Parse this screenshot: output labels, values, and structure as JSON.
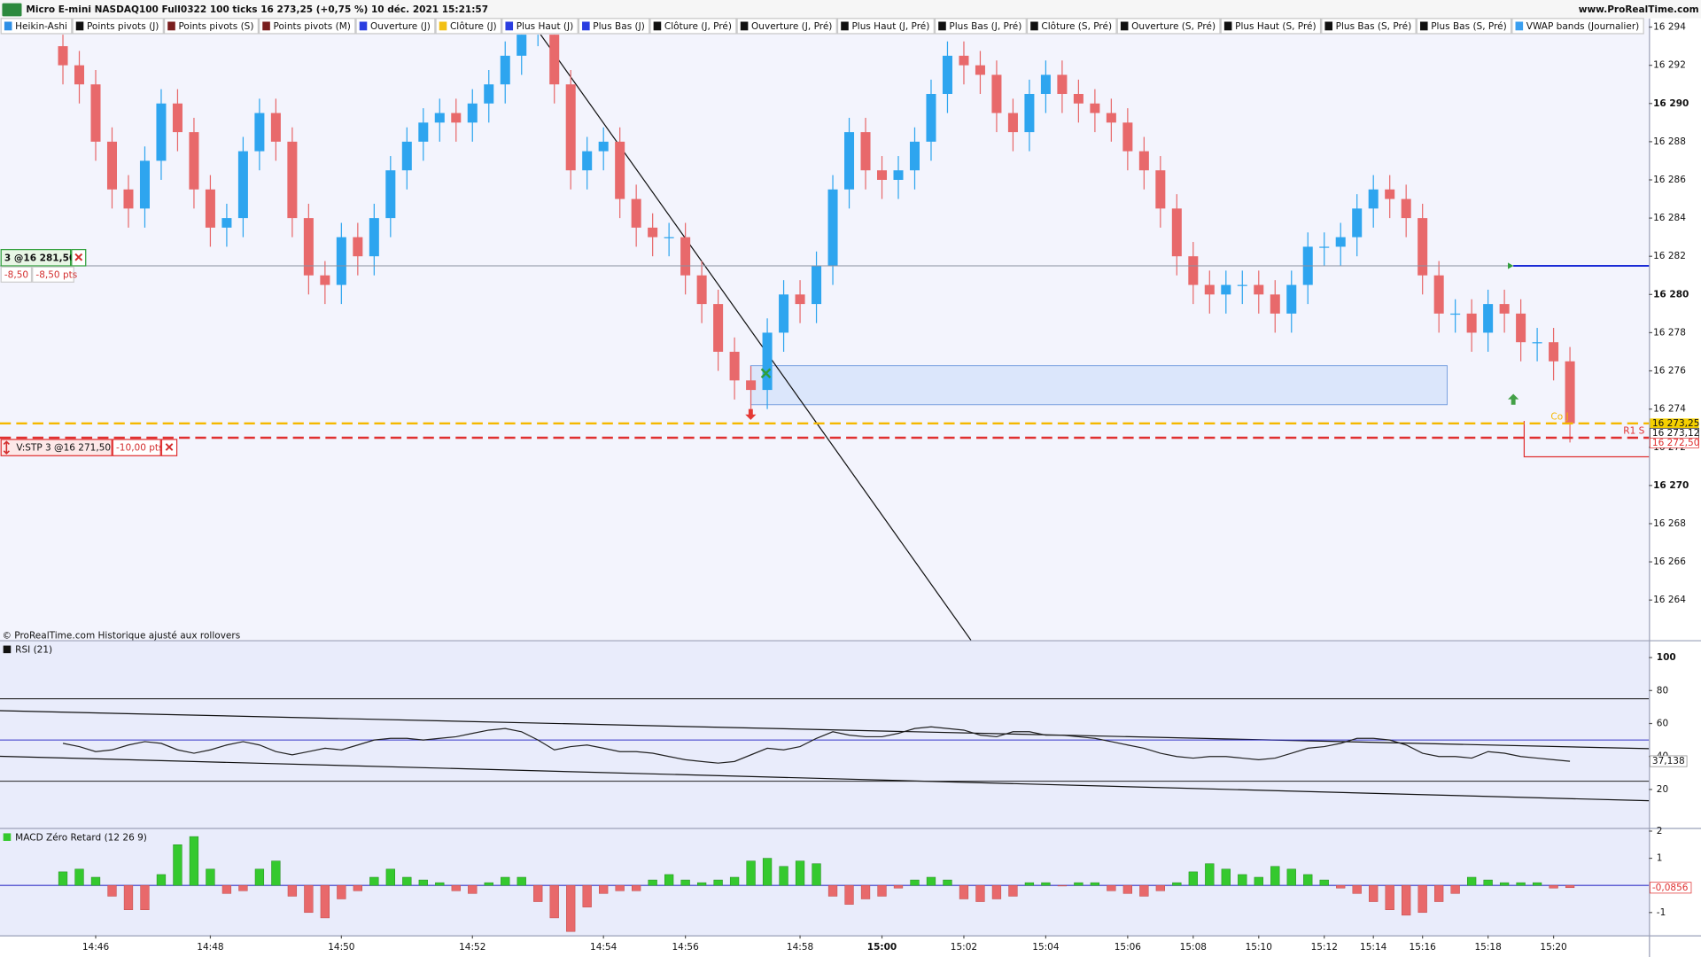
{
  "header": {
    "title": "Micro E-mini NASDAQ100 Full0322 100 ticks 16 273,25 (+0,75 %) 10 déc. 2021 15:21:57",
    "site": "www.ProRealTime.com"
  },
  "legend": [
    {
      "label": "Heikin-Ashi",
      "color": "#2e8fe6"
    },
    {
      "label": "Points pivots (J)",
      "color": "#111111"
    },
    {
      "label": "Points pivots (S)",
      "color": "#7a1f1f"
    },
    {
      "label": "Points pivots (M)",
      "color": "#7a1f1f"
    },
    {
      "label": "Ouverture (J)",
      "color": "#2b3ee0"
    },
    {
      "label": "Clôture (J)",
      "color": "#f2c014"
    },
    {
      "label": "Plus Haut (J)",
      "color": "#2b3ee0"
    },
    {
      "label": "Plus Bas (J)",
      "color": "#2b3ee0"
    },
    {
      "label": "Clôture (J, Pré)",
      "color": "#111111"
    },
    {
      "label": "Ouverture (J, Pré)",
      "color": "#111111"
    },
    {
      "label": "Plus Haut (J, Pré)",
      "color": "#111111"
    },
    {
      "label": "Plus Bas (J, Pré)",
      "color": "#111111"
    },
    {
      "label": "Clôture (S, Pré)",
      "color": "#111111"
    },
    {
      "label": "Ouverture (S, Pré)",
      "color": "#111111"
    },
    {
      "label": "Plus Haut (S, Pré)",
      "color": "#111111"
    },
    {
      "label": "Plus Bas (S, Pré)",
      "color": "#111111"
    },
    {
      "label": "Plus Bas (S, Pré)",
      "color": "#111111"
    },
    {
      "label": "VWAP bands (Journalier)",
      "color": "#3a9ff0"
    }
  ],
  "orders": [
    {
      "label": "3 @16 281,50",
      "pnl": "-8,50",
      "pnl_pts": "-8,50 pts"
    },
    {
      "label": "V:STP  3 @16 271,50",
      "pnl_pts": "-10,00 pts"
    }
  ],
  "chart_data": [
    {
      "type": "candlestick",
      "footnote": "© ProRealTime.com  Historique ajusté aux rollovers",
      "categories": [
        null,
        null,
        "14:46",
        null,
        null,
        null,
        null,
        null,
        null,
        "14:48",
        null,
        null,
        null,
        null,
        null,
        null,
        null,
        "14:50",
        null,
        null,
        null,
        null,
        null,
        null,
        null,
        "14:52",
        null,
        null,
        null,
        null,
        null,
        null,
        null,
        "14:54",
        null,
        null,
        null,
        null,
        "14:56",
        null,
        null,
        null,
        null,
        null,
        null,
        "14:58",
        null,
        null,
        null,
        null,
        "15:00",
        null,
        null,
        null,
        null,
        "15:02",
        null,
        null,
        null,
        null,
        "15:04",
        null,
        null,
        null,
        null,
        "15:06",
        null,
        null,
        null,
        "15:08",
        null,
        null,
        null,
        "15:10",
        null,
        null,
        null,
        "15:12",
        null,
        null,
        "15:14",
        null,
        null,
        "15:16",
        null,
        null,
        null,
        "15:18",
        null,
        null,
        null,
        "15:20",
        null
      ],
      "open": [
        16293,
        16292,
        16291,
        16288,
        16285.5,
        16284.5,
        16287,
        16290,
        16288.5,
        16285.5,
        16283.5,
        16284,
        16287.5,
        16289.5,
        16288,
        16284,
        16281,
        16280.5,
        16283,
        16282,
        16284,
        16286.5,
        16288,
        16289,
        16289.5,
        16289,
        16290,
        16291,
        16292.5,
        16294,
        16294,
        16291,
        16286.5,
        16287.5,
        16288,
        16285,
        16283.5,
        16283,
        16283,
        16281,
        16279.5,
        16277,
        16275.5,
        16275,
        16278,
        16280,
        16279.5,
        16281.5,
        16285.5,
        16288.5,
        16286.5,
        16286,
        16286.5,
        16288,
        16290.5,
        16292.5,
        16292,
        16291.5,
        16289.5,
        16288.5,
        16290.5,
        16291.5,
        16290.5,
        16290,
        16289.5,
        16289,
        16287.5,
        16286.5,
        16284.5,
        16282,
        16280.5,
        16280,
        16280.5,
        16280.5,
        16280,
        16279,
        16280.5,
        16282.5,
        16282.5,
        16283,
        16284.5,
        16285.5,
        16285,
        16284,
        16281,
        16279,
        16279,
        16278,
        16279.5,
        16279,
        16277.5,
        16277.5,
        16276.5
      ],
      "high": [
        16293.75,
        16292.75,
        16291.75,
        16288.75,
        16286.25,
        16287.75,
        16290.75,
        16290.75,
        16289.25,
        16286.25,
        16284.75,
        16288.25,
        16290.25,
        16290.25,
        16288.75,
        16284.75,
        16281.75,
        16283.75,
        16283.75,
        16284.75,
        16287.25,
        16288.75,
        16289.75,
        16290.25,
        16290.25,
        16290.75,
        16291.75,
        16293.25,
        16294.75,
        16294.75,
        16294.75,
        16291.75,
        16288.25,
        16288.75,
        16288.75,
        16285.75,
        16284.25,
        16283.75,
        16283.75,
        16281.75,
        16280.25,
        16277.75,
        16276.25,
        16278.75,
        16280.75,
        16280.75,
        16282.25,
        16286.25,
        16289.25,
        16289.25,
        16287.25,
        16287.25,
        16288.75,
        16291.25,
        16293.25,
        16293.25,
        16292.75,
        16292.25,
        16290.25,
        16291.25,
        16292.25,
        16292.25,
        16291.25,
        16290.75,
        16290.25,
        16289.75,
        16288.25,
        16287.25,
        16285.25,
        16282.75,
        16281.25,
        16281.25,
        16281.25,
        16281.25,
        16280.75,
        16281.25,
        16283.25,
        16283.25,
        16283.75,
        16285.25,
        16286.25,
        16286.25,
        16285.75,
        16284.75,
        16281.75,
        16279.75,
        16279.75,
        16280.25,
        16280.25,
        16279.75,
        16278.25,
        16278.25,
        16277.25
      ],
      "low": [
        16291,
        16290,
        16287,
        16284.5,
        16283.5,
        16283.5,
        16286,
        16287.5,
        16284.5,
        16282.5,
        16282.5,
        16283,
        16286.5,
        16287,
        16283,
        16280,
        16279.5,
        16279.5,
        16281,
        16281,
        16283,
        16285.5,
        16287,
        16288,
        16288,
        16288,
        16289,
        16290,
        16291.5,
        16293,
        16290,
        16285.5,
        16285.5,
        16286.5,
        16284,
        16282.5,
        16282,
        16282,
        16280,
        16278.5,
        16276,
        16274.5,
        16274,
        16274,
        16277,
        16278.5,
        16278.5,
        16280.5,
        16284.5,
        16285.5,
        16285,
        16285,
        16285.5,
        16287,
        16289.5,
        16291,
        16290.5,
        16288.5,
        16287.5,
        16287.5,
        16289.5,
        16289.5,
        16289,
        16288.5,
        16288,
        16286.5,
        16285.5,
        16283.5,
        16281,
        16279.5,
        16279,
        16279,
        16279.5,
        16279,
        16278,
        16278,
        16279.5,
        16281.5,
        16281.5,
        16282,
        16283.5,
        16284,
        16283,
        16280,
        16278,
        16278,
        16277,
        16277,
        16278,
        16276.5,
        16276.5,
        16275.5,
        16272.25
      ],
      "close": [
        16292,
        16291,
        16288,
        16285.5,
        16284.5,
        16287,
        16290,
        16288.5,
        16285.5,
        16283.5,
        16284,
        16287.5,
        16289.5,
        16288,
        16284,
        16281,
        16280.5,
        16283,
        16282,
        16284,
        16286.5,
        16288,
        16289,
        16289.5,
        16289,
        16290,
        16291,
        16292.5,
        16294,
        16294,
        16291,
        16286.5,
        16287.5,
        16288,
        16285,
        16283.5,
        16283,
        16283,
        16281,
        16279.5,
        16277,
        16275.5,
        16275,
        16278,
        16280,
        16279.5,
        16281.5,
        16285.5,
        16288.5,
        16286.5,
        16286,
        16286.5,
        16288,
        16290.5,
        16292.5,
        16292,
        16291.5,
        16289.5,
        16288.5,
        16290.5,
        16291.5,
        16290.5,
        16290,
        16289.5,
        16289,
        16287.5,
        16286.5,
        16284.5,
        16282,
        16280.5,
        16280,
        16280.5,
        16280.5,
        16280,
        16279,
        16280.5,
        16282.5,
        16282.5,
        16283,
        16284.5,
        16285.5,
        16285,
        16284,
        16281,
        16279,
        16279,
        16278,
        16279.5,
        16279,
        16277.5,
        16277.5,
        16276.5,
        16273.25
      ],
      "up_color": "#2ea5ef",
      "down_color": "#e8696b",
      "ylim": [
        16261.9,
        16293.6
      ],
      "yticks": [
        {
          "value": 16294,
          "label": "16 294"
        },
        {
          "value": 16292,
          "label": "16 292"
        },
        {
          "value": 16290,
          "label": "16 290"
        },
        {
          "value": 16288,
          "label": "16 288"
        },
        {
          "value": 16286,
          "label": "16 286"
        },
        {
          "value": 16284,
          "label": "16 284"
        },
        {
          "value": 16282,
          "label": "16 282"
        },
        {
          "value": 16280,
          "label": "16 280"
        },
        {
          "value": 16278,
          "label": "16 278"
        },
        {
          "value": 16276,
          "label": "16 276"
        },
        {
          "value": 16274,
          "label": "16 274"
        },
        {
          "value": 16272,
          "label": "16 272"
        },
        {
          "value": 16270,
          "label": "16 270"
        },
        {
          "value": 16268,
          "label": "16 268"
        },
        {
          "value": 16266,
          "label": "16 266"
        },
        {
          "value": 16264,
          "label": "16 264"
        }
      ],
      "levels": [
        {
          "value": 16281.5,
          "color": "#8a8fa0",
          "span": "full"
        },
        {
          "value": 16281.5,
          "color": "#1a2bd6",
          "span": "right"
        },
        {
          "value": 16273.25,
          "label": "16 273,25",
          "tag": "Co J",
          "color": "#f5b800",
          "span": "dashed"
        },
        {
          "value": 16273.12,
          "label": "16 273,12",
          "color": "#333333",
          "span": "none"
        },
        {
          "value": 16272.5,
          "label": "16 272,50",
          "tag": "R1 S",
          "color": "#e03030",
          "span": "dashed"
        }
      ]
    },
    {
      "type": "line",
      "title": "RSI (21)",
      "color": "#222222",
      "values": [
        48,
        46,
        43,
        44,
        47,
        49,
        48,
        44,
        42,
        44,
        47,
        49,
        47,
        43,
        41,
        43,
        45,
        44,
        47,
        50,
        51,
        51,
        50,
        51,
        52,
        54,
        56,
        57,
        55,
        50,
        44,
        46,
        47,
        45,
        43,
        43,
        42,
        40,
        38,
        37,
        36,
        37,
        41,
        45,
        44,
        46,
        51,
        55,
        53,
        52,
        52,
        54,
        57,
        58,
        57,
        56,
        53,
        52,
        55,
        55,
        53,
        53,
        52,
        51,
        49,
        47,
        45,
        42,
        40,
        39,
        40,
        40,
        39,
        38,
        39,
        42,
        45,
        46,
        48,
        51,
        51,
        50,
        47,
        42,
        40,
        40,
        39,
        43,
        42,
        40,
        39,
        38,
        37.138
      ],
      "ylim": [
        -3.3,
        109.9
      ],
      "yticks": [
        100,
        80,
        60,
        40,
        20
      ],
      "levels": [
        75,
        50,
        25
      ],
      "last": {
        "value": 37.138,
        "label": "37,138"
      }
    },
    {
      "type": "bar",
      "title": "MACD Zéro Retard (12 26 9)",
      "pos_color": "#35c92e",
      "neg_color": "#e8696b",
      "values": [
        0.5,
        0.6,
        0.3,
        -0.4,
        -0.9,
        -0.9,
        0.4,
        1.5,
        1.8,
        0.6,
        -0.3,
        -0.2,
        0.6,
        0.9,
        -0.4,
        -1.0,
        -1.2,
        -0.5,
        -0.2,
        0.3,
        0.6,
        0.3,
        0.2,
        0.1,
        -0.2,
        -0.3,
        0.1,
        0.3,
        0.3,
        -0.6,
        -1.2,
        -1.7,
        -0.8,
        -0.3,
        -0.2,
        -0.2,
        0.2,
        0.4,
        0.2,
        0.1,
        0.2,
        0.3,
        0.9,
        1.0,
        0.7,
        0.9,
        0.8,
        -0.4,
        -0.7,
        -0.5,
        -0.4,
        -0.1,
        0.2,
        0.3,
        0.2,
        -0.5,
        -0.6,
        -0.5,
        -0.4,
        0.1,
        0.1,
        0,
        0.1,
        0.1,
        -0.2,
        -0.3,
        -0.4,
        -0.2,
        0.1,
        0.5,
        0.8,
        0.6,
        0.4,
        0.3,
        0.7,
        0.6,
        0.4,
        0.2,
        -0.1,
        -0.3,
        -0.6,
        -0.9,
        -1.1,
        -1.0,
        -0.6,
        -0.3,
        0.3,
        0.2,
        0.1,
        0.1,
        0.1,
        -0.1,
        -0.0856
      ],
      "ylim": [
        -1.84,
        2.08
      ],
      "yticks": [
        2,
        1,
        -1
      ],
      "last": {
        "value": -0.0856,
        "label": "-0,0856"
      }
    }
  ]
}
